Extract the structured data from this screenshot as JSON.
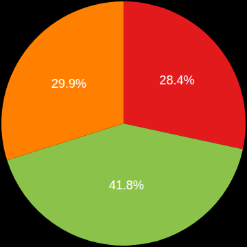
{
  "chart_data": {
    "type": "pie",
    "values": [
      28.4,
      41.8,
      29.9
    ],
    "value_labels": [
      "28.4%",
      "41.8%",
      "29.9%"
    ],
    "colors": [
      "#e31a1c",
      "#8bc34a",
      "#ff7f00"
    ],
    "data_labels": true
  }
}
